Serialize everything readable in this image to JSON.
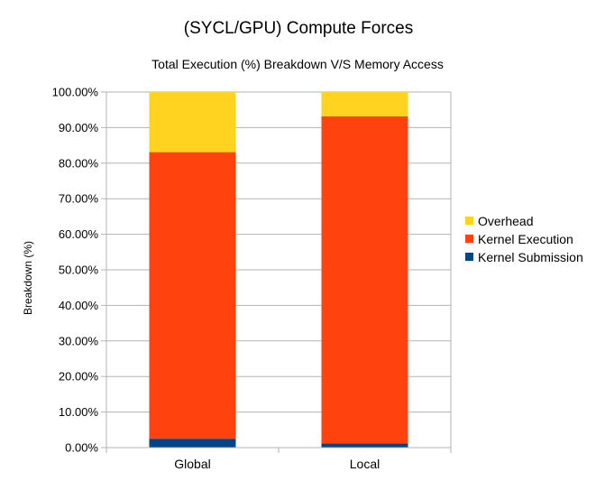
{
  "chart_data": {
    "type": "bar",
    "stacked": true,
    "title": "(SYCL/GPU) Compute Forces",
    "subtitle": "Total Execution (%) Breakdown V/S Memory Access",
    "xlabel": "",
    "ylabel": "Breakdown (%)",
    "ylim": [
      0,
      100
    ],
    "y_ticks": [
      "0.00%",
      "10.00%",
      "20.00%",
      "30.00%",
      "40.00%",
      "50.00%",
      "60.00%",
      "70.00%",
      "80.00%",
      "90.00%",
      "100.00%"
    ],
    "categories": [
      "Global",
      "Local"
    ],
    "series": [
      {
        "name": "Kernel Submission",
        "values": [
          2.5,
          1.2
        ],
        "color": "#004586"
      },
      {
        "name": "Kernel Execution",
        "values": [
          80.6,
          92.0
        ],
        "color": "#ff420e"
      },
      {
        "name": "Overhead",
        "values": [
          16.9,
          6.8
        ],
        "color": "#ffd320"
      }
    ],
    "legend_order": [
      "Overhead",
      "Kernel Execution",
      "Kernel Submission"
    ],
    "grid": true,
    "legend_position": "right"
  }
}
